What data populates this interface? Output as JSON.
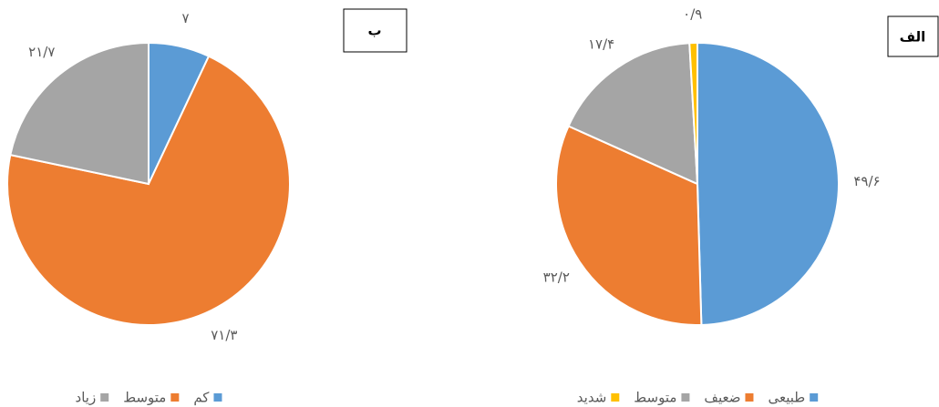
{
  "chart_data": [
    {
      "type": "pie",
      "title": "ب",
      "categories": [
        "کم",
        "متوسط",
        "زیاد"
      ],
      "values": [
        7,
        71.3,
        21.7
      ],
      "value_labels": [
        "۷",
        "۷۱/۳",
        "۲۱/۷"
      ],
      "colors": [
        "#5b9bd5",
        "#ed7d31",
        "#a5a5a5"
      ]
    },
    {
      "type": "pie",
      "title": "الف",
      "categories": [
        "طبیعی",
        "ضعیف",
        "متوسط",
        "شدید"
      ],
      "values": [
        49.6,
        32.2,
        17.4,
        0.9
      ],
      "value_labels": [
        "۴۹/۶",
        "۳۲/۲",
        "۱۷/۴",
        "۰/۹"
      ],
      "colors": [
        "#5b9bd5",
        "#ed7d31",
        "#a5a5a5",
        "#ffc000"
      ]
    }
  ]
}
